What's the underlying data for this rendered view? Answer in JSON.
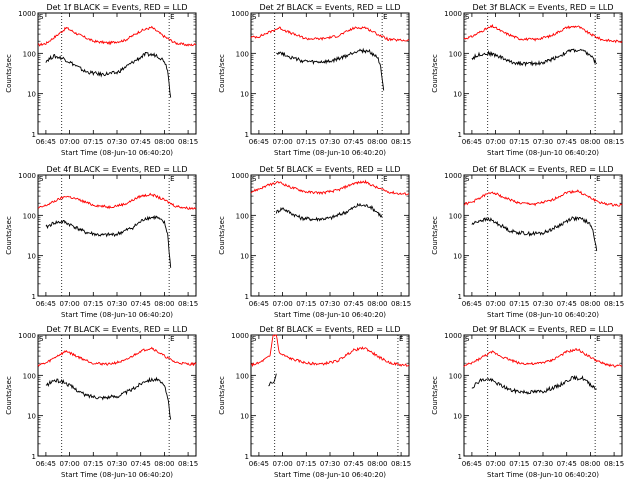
{
  "chart_data": [
    {
      "type": "line",
      "title": "Det 1f BLACK = Events, RED = LLD",
      "xlabel": "Start Time (08-Jun-10 06:40:20)",
      "ylabel": "Counts/sec",
      "xticks": [
        "06:45",
        "07:00",
        "07:15",
        "07:30",
        "07:45",
        "08:00",
        "08:15"
      ],
      "yticks": [
        "1",
        "10",
        "100",
        "1000"
      ],
      "ylim": [
        1,
        1000
      ],
      "yscale": "log",
      "saa_markers": [
        "S",
        "E"
      ],
      "series": [
        {
          "name": "LLD",
          "color": "#ff0000",
          "x": [
            "06:40",
            "06:45",
            "06:52",
            "06:58",
            "07:05",
            "07:15",
            "07:25",
            "07:35",
            "07:45",
            "07:52",
            "08:00",
            "08:07",
            "08:15",
            "08:20"
          ],
          "y": [
            160,
            175,
            280,
            430,
            300,
            200,
            180,
            210,
            360,
            440,
            260,
            180,
            160,
            165
          ]
        },
        {
          "name": "Events",
          "color": "#000000",
          "x": [
            "06:45",
            "06:50",
            "06:56",
            "07:02",
            "07:10",
            "07:20",
            "07:30",
            "07:40",
            "07:48",
            "07:55",
            "08:00",
            "08:02",
            "08:04"
          ],
          "y": [
            65,
            85,
            75,
            55,
            35,
            30,
            33,
            60,
            95,
            90,
            65,
            40,
            8
          ]
        }
      ]
    },
    {
      "type": "line",
      "title": "Det 2f BLACK = Events, RED = LLD",
      "xlabel": "Start Time (08-Jun-10 06:40:20)",
      "ylabel": "Counts/sec",
      "xticks": [
        "06:45",
        "07:00",
        "07:15",
        "07:30",
        "07:45",
        "08:00",
        "08:15"
      ],
      "yticks": [
        "1",
        "10",
        "100",
        "1000"
      ],
      "ylim": [
        1,
        1000
      ],
      "yscale": "log",
      "saa_markers": [
        "S",
        "E"
      ],
      "series": [
        {
          "name": "LLD",
          "color": "#ff0000",
          "x": [
            "06:40",
            "06:45",
            "06:52",
            "06:58",
            "07:05",
            "07:15",
            "07:25",
            "07:35",
            "07:45",
            "07:52",
            "08:00",
            "08:07",
            "08:15",
            "08:20"
          ],
          "y": [
            250,
            260,
            340,
            430,
            320,
            230,
            230,
            270,
            420,
            440,
            300,
            220,
            210,
            210
          ]
        },
        {
          "name": "Events",
          "color": "#000000",
          "x": [
            "06:56",
            "07:00",
            "07:05",
            "07:12",
            "07:20",
            "07:30",
            "07:40",
            "07:48",
            "07:55",
            "08:00",
            "08:02",
            "08:04"
          ],
          "y": [
            105,
            100,
            80,
            65,
            60,
            62,
            85,
            120,
            110,
            80,
            50,
            12
          ]
        }
      ]
    },
    {
      "type": "line",
      "title": "Det 3f BLACK = Events, RED = LLD",
      "xlabel": "Start Time (08-Jun-10 06:40:20)",
      "ylabel": "Counts/sec",
      "xticks": [
        "06:45",
        "07:00",
        "07:15",
        "07:30",
        "07:45",
        "08:00",
        "08:15"
      ],
      "yticks": [
        "1",
        "10",
        "100",
        "1000"
      ],
      "ylim": [
        1,
        1000
      ],
      "yscale": "log",
      "saa_markers": [
        "S",
        "E"
      ],
      "series": [
        {
          "name": "LLD",
          "color": "#ff0000",
          "x": [
            "06:40",
            "06:45",
            "06:52",
            "06:58",
            "07:05",
            "07:15",
            "07:25",
            "07:35",
            "07:45",
            "07:52",
            "08:00",
            "08:07",
            "08:15",
            "08:20"
          ],
          "y": [
            230,
            260,
            370,
            470,
            330,
            230,
            220,
            270,
            440,
            470,
            300,
            220,
            200,
            200
          ]
        },
        {
          "name": "Events",
          "color": "#000000",
          "x": [
            "06:45",
            "06:50",
            "06:56",
            "07:02",
            "07:10",
            "07:20",
            "07:30",
            "07:40",
            "07:48",
            "07:55",
            "08:00",
            "08:04"
          ],
          "y": [
            75,
            95,
            100,
            85,
            60,
            55,
            58,
            85,
            120,
            115,
            90,
            55
          ]
        }
      ]
    },
    {
      "type": "line",
      "title": "Det 4f BLACK = Events, RED = LLD",
      "xlabel": "Start Time (08-Jun-10 06:40:20)",
      "ylabel": "Counts/sec",
      "xticks": [
        "06:45",
        "07:00",
        "07:15",
        "07:30",
        "07:45",
        "08:00",
        "08:15"
      ],
      "yticks": [
        "1",
        "10",
        "100",
        "1000"
      ],
      "ylim": [
        1,
        1000
      ],
      "yscale": "log",
      "saa_markers": [
        "S",
        "E"
      ],
      "series": [
        {
          "name": "LLD",
          "color": "#ff0000",
          "x": [
            "06:40",
            "06:45",
            "06:52",
            "06:58",
            "07:05",
            "07:15",
            "07:25",
            "07:35",
            "07:45",
            "07:52",
            "08:00",
            "08:07",
            "08:15",
            "08:20"
          ],
          "y": [
            150,
            175,
            240,
            300,
            250,
            180,
            160,
            190,
            300,
            330,
            240,
            170,
            150,
            150
          ]
        },
        {
          "name": "Events",
          "color": "#000000",
          "x": [
            "06:45",
            "06:50",
            "06:56",
            "07:02",
            "07:10",
            "07:20",
            "07:30",
            "07:40",
            "07:48",
            "07:55",
            "08:00",
            "08:02",
            "08:04"
          ],
          "y": [
            50,
            65,
            70,
            55,
            38,
            32,
            34,
            50,
            85,
            90,
            65,
            35,
            5
          ]
        }
      ]
    },
    {
      "type": "line",
      "title": "Det 5f BLACK = Events, RED = LLD",
      "xlabel": "Start Time (08-Jun-10 06:40:20)",
      "ylabel": "Counts/sec",
      "xticks": [
        "06:45",
        "07:00",
        "07:15",
        "07:30",
        "07:45",
        "08:00",
        "08:15"
      ],
      "yticks": [
        "1",
        "10",
        "100",
        "1000"
      ],
      "ylim": [
        1,
        1000
      ],
      "yscale": "log",
      "saa_markers": [
        "S",
        "E"
      ],
      "series": [
        {
          "name": "LLD",
          "color": "#ff0000",
          "x": [
            "06:40",
            "06:45",
            "06:52",
            "06:58",
            "07:05",
            "07:15",
            "07:25",
            "07:35",
            "07:45",
            "07:52",
            "08:00",
            "08:07",
            "08:15",
            "08:20"
          ],
          "y": [
            380,
            450,
            580,
            660,
            500,
            380,
            360,
            420,
            620,
            680,
            480,
            380,
            340,
            340
          ]
        },
        {
          "name": "Events",
          "color": "#000000",
          "x": [
            "06:56",
            "07:00",
            "07:05",
            "07:12",
            "07:20",
            "07:30",
            "07:40",
            "07:48",
            "07:55",
            "08:00",
            "08:03"
          ],
          "y": [
            120,
            150,
            115,
            85,
            80,
            85,
            120,
            180,
            170,
            120,
            90
          ]
        }
      ]
    },
    {
      "type": "line",
      "title": "Det 6f BLACK = Events, RED = LLD",
      "xlabel": "Start Time (08-Jun-10 06:40:20)",
      "ylabel": "Counts/sec",
      "xticks": [
        "06:45",
        "07:00",
        "07:15",
        "07:30",
        "07:45",
        "08:00",
        "08:15"
      ],
      "yticks": [
        "1",
        "10",
        "100",
        "1000"
      ],
      "ylim": [
        1,
        1000
      ],
      "yscale": "log",
      "saa_markers": [
        "S",
        "E"
      ],
      "series": [
        {
          "name": "LLD",
          "color": "#ff0000",
          "x": [
            "06:40",
            "06:45",
            "06:52",
            "06:58",
            "07:05",
            "07:15",
            "07:25",
            "07:35",
            "07:45",
            "07:52",
            "08:00",
            "08:07",
            "08:15",
            "08:20"
          ],
          "y": [
            190,
            210,
            300,
            380,
            280,
            200,
            190,
            230,
            370,
            400,
            270,
            200,
            180,
            180
          ]
        },
        {
          "name": "Events",
          "color": "#000000",
          "x": [
            "06:45",
            "06:50",
            "06:56",
            "07:02",
            "07:10",
            "07:20",
            "07:30",
            "07:40",
            "07:48",
            "07:55",
            "08:00",
            "08:02",
            "08:04"
          ],
          "y": [
            60,
            75,
            80,
            60,
            40,
            35,
            36,
            55,
            85,
            80,
            60,
            35,
            13
          ]
        }
      ]
    },
    {
      "type": "line",
      "title": "Det 7f BLACK = Events, RED = LLD",
      "xlabel": "Start Time (08-Jun-10 06:40:20)",
      "ylabel": "Counts/sec",
      "xticks": [
        "06:45",
        "07:00",
        "07:15",
        "07:30",
        "07:45",
        "08:00",
        "08:15"
      ],
      "yticks": [
        "1",
        "10",
        "100",
        "1000"
      ],
      "ylim": [
        1,
        1000
      ],
      "yscale": "log",
      "saa_markers": [
        "S",
        "E"
      ],
      "series": [
        {
          "name": "LLD",
          "color": "#ff0000",
          "x": [
            "06:40",
            "06:45",
            "06:52",
            "06:58",
            "07:05",
            "07:15",
            "07:25",
            "07:35",
            "07:45",
            "07:52",
            "08:00",
            "08:07",
            "08:15",
            "08:20"
          ],
          "y": [
            180,
            200,
            300,
            400,
            290,
            200,
            190,
            230,
            400,
            480,
            300,
            210,
            190,
            190
          ]
        },
        {
          "name": "Events",
          "color": "#000000",
          "x": [
            "06:45",
            "06:50",
            "06:56",
            "07:02",
            "07:10",
            "07:20",
            "07:30",
            "07:40",
            "07:48",
            "07:55",
            "08:00",
            "08:02",
            "08:04"
          ],
          "y": [
            55,
            75,
            70,
            50,
            32,
            28,
            30,
            45,
            75,
            80,
            55,
            30,
            8
          ]
        }
      ]
    },
    {
      "type": "line",
      "title": "Det 8f BLACK = Events, RED = LLD",
      "xlabel": "Start Time (08-Jun-10 06:40:20)",
      "ylabel": "Counts/sec",
      "xticks": [
        "06:45",
        "07:00",
        "07:15",
        "07:30",
        "07:45",
        "08:00",
        "08:15"
      ],
      "yticks": [
        "1",
        "10",
        "100",
        "1000"
      ],
      "ylim": [
        1,
        1000
      ],
      "yscale": "log",
      "saa_markers": [
        "S",
        "E"
      ],
      "series": [
        {
          "name": "LLD",
          "color": "#ff0000",
          "x": [
            "06:40",
            "06:45",
            "06:52",
            "06:54",
            "06:55",
            "06:56",
            "06:58",
            "07:05",
            "07:15",
            "07:25",
            "07:35",
            "07:45",
            "07:52",
            "08:00",
            "08:07",
            "08:15",
            "08:20"
          ],
          "y": [
            180,
            200,
            300,
            1000,
            1000,
            1000,
            350,
            260,
            200,
            190,
            230,
            420,
            480,
            300,
            210,
            180,
            180
          ]
        },
        {
          "name": "Events",
          "color": "#000000",
          "x": [
            "06:51",
            "06:52",
            "06:53",
            "06:54",
            "06:55",
            "06:56"
          ],
          "y": [
            50,
            65,
            70,
            60,
            80,
            110
          ]
        }
      ]
    },
    {
      "type": "line",
      "title": "Det 9f BLACK = Events, RED = LLD",
      "xlabel": "Start Time (08-Jun-10 06:40:20)",
      "ylabel": "Counts/sec",
      "xticks": [
        "06:45",
        "07:00",
        "07:15",
        "07:30",
        "07:45",
        "08:00",
        "08:15"
      ],
      "yticks": [
        "1",
        "10",
        "100",
        "1000"
      ],
      "ylim": [
        1,
        1000
      ],
      "yscale": "log",
      "saa_markers": [
        "S",
        "E"
      ],
      "series": [
        {
          "name": "LLD",
          "color": "#ff0000",
          "x": [
            "06:40",
            "06:45",
            "06:52",
            "06:58",
            "07:05",
            "07:15",
            "07:25",
            "07:35",
            "07:45",
            "07:52",
            "08:00",
            "08:07",
            "08:15",
            "08:20"
          ],
          "y": [
            170,
            200,
            290,
            380,
            280,
            200,
            190,
            230,
            380,
            440,
            280,
            200,
            170,
            170
          ]
        },
        {
          "name": "Events",
          "color": "#000000",
          "x": [
            "06:45",
            "06:50",
            "06:56",
            "07:02",
            "07:10",
            "07:20",
            "07:30",
            "07:40",
            "07:48",
            "07:55",
            "08:00",
            "08:04"
          ],
          "y": [
            50,
            75,
            80,
            60,
            42,
            38,
            40,
            55,
            85,
            85,
            60,
            45
          ]
        }
      ]
    }
  ]
}
